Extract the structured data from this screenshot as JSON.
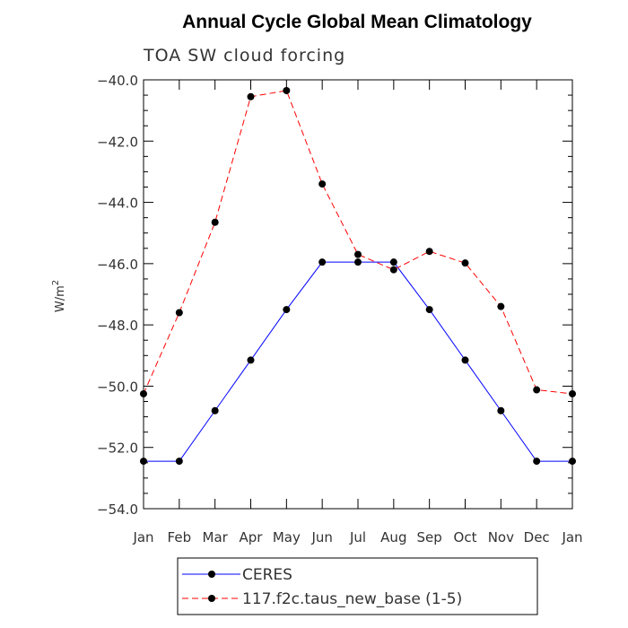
{
  "chart_data": {
    "type": "line",
    "title": "Annual Cycle Global Mean Climatology",
    "subtitle": "TOA SW cloud forcing",
    "ylabel": "W/m",
    "ylabel_sup": "2",
    "xlabel": "",
    "categories": [
      "Jan",
      "Feb",
      "Mar",
      "Apr",
      "May",
      "Jun",
      "Jul",
      "Aug",
      "Sep",
      "Oct",
      "Nov",
      "Dec",
      "Jan"
    ],
    "ylim": [
      -54.0,
      -40.0
    ],
    "yticks": [
      -40.0,
      -42.0,
      -44.0,
      -46.0,
      -48.0,
      -50.0,
      -52.0,
      -54.0
    ],
    "ytick_labels": [
      "−40.0",
      "−42.0",
      "−44.0",
      "−46.0",
      "−48.0",
      "−50.0",
      "−52.0",
      "−54.0"
    ],
    "series": [
      {
        "name": "CERES",
        "color": "#0000ff",
        "dashed": false,
        "values": [
          -52.45,
          -52.45,
          -50.8,
          -49.15,
          -47.5,
          -45.95,
          -45.95,
          -45.95,
          -47.5,
          -49.15,
          -50.8,
          -52.45,
          -52.45
        ]
      },
      {
        "name": "117.f2c.taus_new_base (1-5)",
        "color": "#ff0000",
        "dashed": true,
        "values": [
          -50.25,
          -47.6,
          -44.65,
          -40.55,
          -40.35,
          -43.4,
          -45.7,
          -46.2,
          -45.6,
          -45.98,
          -47.4,
          -50.12,
          -50.25
        ]
      }
    ]
  }
}
